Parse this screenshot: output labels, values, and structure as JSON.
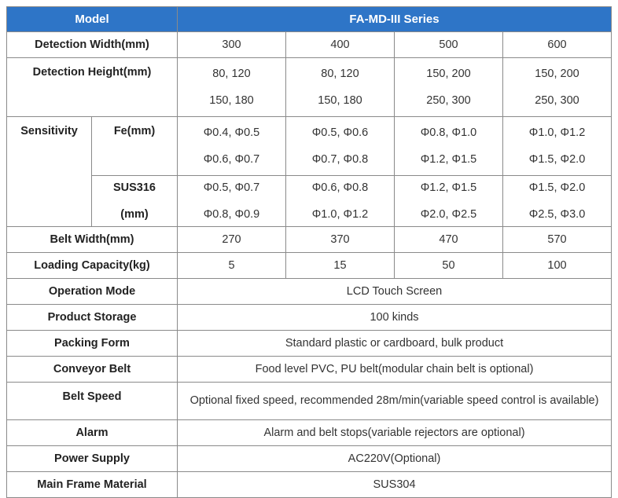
{
  "header": {
    "model_label": "Model",
    "series": "FA-MD-III Series"
  },
  "detection_width": {
    "label": "Detection Width(mm)",
    "values": [
      "300",
      "400",
      "500",
      "600"
    ]
  },
  "detection_height": {
    "label": "Detection Height(mm)",
    "values": [
      [
        "80, 120",
        "150, 180"
      ],
      [
        "80, 120",
        "150, 180"
      ],
      [
        "150, 200",
        "250, 300"
      ],
      [
        "150, 200",
        "250, 300"
      ]
    ]
  },
  "sensitivity": {
    "label": "Sensitivity",
    "fe": {
      "label": "Fe(mm)",
      "values": [
        [
          "Φ0.4, Φ0.5",
          "Φ0.6, Φ0.7"
        ],
        [
          "Φ0.5, Φ0.6",
          "Φ0.7, Φ0.8"
        ],
        [
          "Φ0.8, Φ1.0",
          "Φ1.2, Φ1.5"
        ],
        [
          "Φ1.0, Φ1.2",
          "Φ1.5, Φ2.0"
        ]
      ]
    },
    "sus": {
      "label_line1": "SUS316",
      "label_line2": "(mm)",
      "values": [
        [
          "Φ0.5, Φ0.7",
          "Φ0.8, Φ0.9"
        ],
        [
          "Φ0.6, Φ0.8",
          "Φ1.0, Φ1.2"
        ],
        [
          "Φ1.2, Φ1.5",
          "Φ2.0, Φ2.5"
        ],
        [
          "Φ1.5, Φ2.0",
          "Φ2.5, Φ3.0"
        ]
      ]
    }
  },
  "belt_width": {
    "label": "Belt Width(mm)",
    "values": [
      "270",
      "370",
      "470",
      "570"
    ]
  },
  "loading_capacity": {
    "label": "Loading Capacity(kg)",
    "values": [
      "5",
      "15",
      "50",
      "100"
    ]
  },
  "operation_mode": {
    "label": "Operation Mode",
    "value": "LCD Touch Screen"
  },
  "product_storage": {
    "label": "Product Storage",
    "value": "100 kinds"
  },
  "packing_form": {
    "label": "Packing Form",
    "value": "Standard plastic or cardboard, bulk product"
  },
  "conveyor_belt": {
    "label": "Conveyor Belt",
    "value": "Food level PVC, PU belt(modular chain belt is optional)"
  },
  "belt_speed": {
    "label": "Belt Speed",
    "value": "Optional fixed speed, recommended 28m/min(variable speed control is available)"
  },
  "alarm": {
    "label": "Alarm",
    "value": "Alarm and belt stops(variable rejectors are optional)"
  },
  "power_supply": {
    "label": "Power Supply",
    "value": "AC220V(Optional)"
  },
  "main_frame": {
    "label": "Main Frame Material",
    "value": "SUS304"
  }
}
